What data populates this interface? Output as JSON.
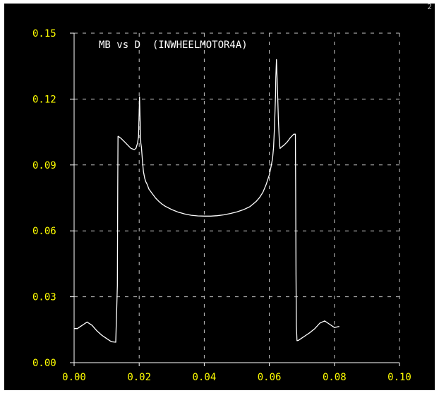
{
  "corner_mark": "2",
  "chart_data": {
    "type": "line",
    "title": "MB vs D  (INWHEELMOTOR4A)",
    "xlabel": "",
    "ylabel": "",
    "xlim": [
      0.0,
      0.1
    ],
    "ylim": [
      0.0,
      0.15
    ],
    "grid": true,
    "x_ticks": [
      "0.00",
      "0.02",
      "0.04",
      "0.06",
      "0.08",
      "0.10"
    ],
    "y_ticks": [
      "0.00",
      "0.03",
      "0.06",
      "0.09",
      "0.12",
      "0.15"
    ],
    "colors": {
      "background": "#000000",
      "axis": "#ffffff",
      "grid": "#c8c8c8",
      "tick_label": "#ffff00",
      "title": "#ffffff",
      "series": "#ffffff"
    },
    "series": [
      {
        "x": [
          0.0,
          0.001,
          0.002,
          0.003,
          0.004,
          0.0055,
          0.007,
          0.0085,
          0.01,
          0.0115,
          0.0128,
          0.0133,
          0.0134,
          0.0135,
          0.0136,
          0.0145,
          0.0155,
          0.0165,
          0.0175,
          0.0185,
          0.019,
          0.0195,
          0.0198,
          0.0201,
          0.0203,
          0.0205,
          0.0207,
          0.021,
          0.0213,
          0.0217,
          0.022,
          0.0225,
          0.023,
          0.024,
          0.025,
          0.026,
          0.027,
          0.028,
          0.03,
          0.032,
          0.034,
          0.036,
          0.038,
          0.04,
          0.042,
          0.044,
          0.046,
          0.048,
          0.05,
          0.052,
          0.054,
          0.055,
          0.056,
          0.057,
          0.058,
          0.059,
          0.06,
          0.0605,
          0.061,
          0.0613,
          0.0616,
          0.0619,
          0.062,
          0.0622,
          0.0625,
          0.0628,
          0.0631,
          0.0633,
          0.0636,
          0.0645,
          0.0655,
          0.0665,
          0.0675,
          0.068,
          0.0681,
          0.0682,
          0.0683,
          0.0685,
          0.069,
          0.07,
          0.071,
          0.0725,
          0.074,
          0.0755,
          0.077,
          0.0785,
          0.08,
          0.0815
        ],
        "y": [
          0.0155,
          0.0155,
          0.0165,
          0.0175,
          0.0185,
          0.017,
          0.0145,
          0.0125,
          0.011,
          0.0095,
          0.0093,
          0.035,
          0.08,
          0.103,
          0.103,
          0.102,
          0.1005,
          0.099,
          0.0975,
          0.097,
          0.0975,
          0.1,
          0.103,
          0.121,
          0.11,
          0.1,
          0.098,
          0.092,
          0.087,
          0.084,
          0.0825,
          0.081,
          0.079,
          0.077,
          0.075,
          0.0735,
          0.0722,
          0.0712,
          0.0697,
          0.0685,
          0.0677,
          0.0671,
          0.0668,
          0.0667,
          0.0667,
          0.0669,
          0.0673,
          0.0679,
          0.0686,
          0.0696,
          0.071,
          0.0722,
          0.0735,
          0.0752,
          0.0775,
          0.081,
          0.0855,
          0.089,
          0.093,
          0.098,
          0.108,
          0.122,
          0.13,
          0.138,
          0.125,
          0.11,
          0.1,
          0.0975,
          0.098,
          0.099,
          0.1005,
          0.1025,
          0.104,
          0.104,
          0.08,
          0.04,
          0.017,
          0.01,
          0.0102,
          0.0112,
          0.0122,
          0.0137,
          0.0155,
          0.018,
          0.019,
          0.0175,
          0.016,
          0.0165
        ]
      }
    ]
  }
}
